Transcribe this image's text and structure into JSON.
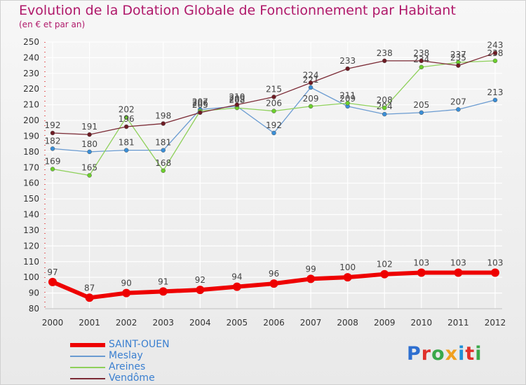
{
  "title": "Evolution de la Dotation Globale de Fonctionnement par Habitant",
  "subtitle": "(en € et par an)",
  "logo_text": "Proxiti",
  "chart_data": {
    "type": "line",
    "title": "Evolution de la Dotation Globale de Fonctionnement par Habitant",
    "subtitle": "(en € et par an)",
    "xlabel": "",
    "ylabel": "",
    "x": [
      "2000",
      "2001",
      "2002",
      "2003",
      "2004",
      "2005",
      "2006",
      "2007",
      "2008",
      "2009",
      "2010",
      "2011",
      "2012"
    ],
    "ylim": [
      80,
      250
    ],
    "yticks": [
      80,
      90,
      100,
      110,
      120,
      130,
      140,
      150,
      160,
      170,
      180,
      190,
      200,
      210,
      220,
      230,
      240,
      250
    ],
    "grid": true,
    "legend_position": "bottom-left",
    "series": [
      {
        "name": "SAINT-OUEN",
        "color": "#ee0000",
        "values": [
          97,
          87,
          90,
          91,
          92,
          94,
          96,
          99,
          100,
          102,
          103,
          103,
          103
        ]
      },
      {
        "name": "Meslay",
        "color": "#6a9bd1",
        "values": [
          182,
          180,
          181,
          181,
          207,
          209,
          192,
          221,
          209,
          204,
          205,
          207,
          213
        ]
      },
      {
        "name": "Areines",
        "color": "#8ed05a",
        "values": [
          169,
          165,
          202,
          168,
          206,
          208,
          206,
          209,
          211,
          208,
          234,
          237,
          238
        ]
      },
      {
        "name": "Vendôme",
        "color": "#7b2a35",
        "values": [
          192,
          191,
          196,
          198,
          205,
          210,
          215,
          224,
          233,
          238,
          238,
          235,
          243
        ]
      }
    ]
  }
}
